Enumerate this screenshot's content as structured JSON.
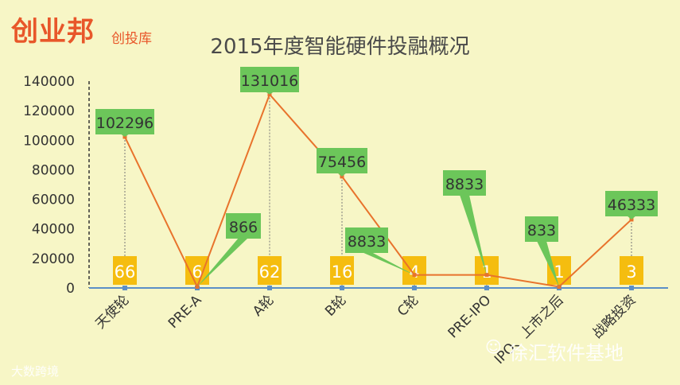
{
  "brand": {
    "logo": "创业邦",
    "sub": "创投库"
  },
  "watermarks": {
    "left": "大数跨境",
    "right": "徐汇软件基地",
    "left_icon": "logo-icon",
    "right_icon": "wechat-icon"
  },
  "colors": {
    "line": "#e8732c",
    "callout": "#6cc65a",
    "count_box": "#f5bd0f",
    "axis": "#5b8fc7"
  },
  "chart_data": {
    "type": "line",
    "title": "2015年度智能硬件投融概况",
    "categories": [
      "天使轮",
      "PRE-A",
      "A轮",
      "B轮",
      "C轮",
      "PRE-IPO",
      "IPO、上市之后",
      "战略投资"
    ],
    "series": [
      {
        "values": [
          102296,
          866,
          131016,
          75456,
          8833,
          8833,
          833,
          46333
        ],
        "labels": [
          "102296",
          "866",
          "131016",
          "75456",
          "8833",
          "8833",
          "833",
          "46333"
        ]
      },
      {
        "values": [
          66,
          6,
          62,
          16,
          4,
          1,
          1,
          3
        ],
        "labels": [
          "66",
          "6",
          "62",
          "16",
          "4",
          "1",
          "1",
          "3"
        ]
      }
    ],
    "yticks": [
      "0",
      "20000",
      "40000",
      "60000",
      "80000",
      "100000",
      "120000",
      "140000"
    ],
    "ylim": [
      0,
      140000
    ],
    "legend": "none",
    "grid": false
  }
}
